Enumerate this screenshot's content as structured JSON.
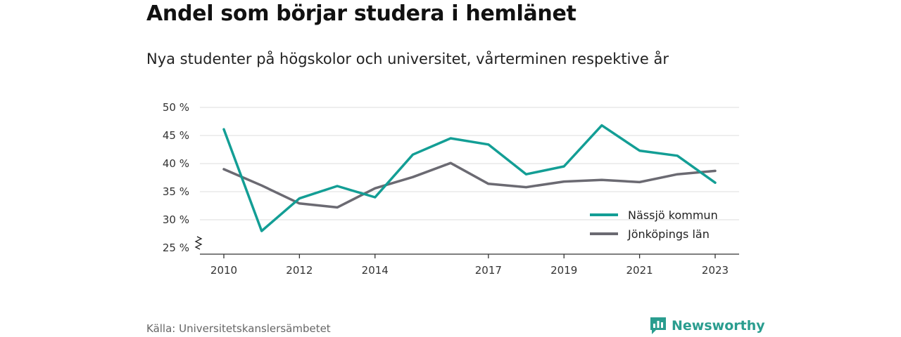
{
  "header": {
    "title": "Andel som börjar studera i hemlänet",
    "subtitle": "Nya studenter på högskolor och universitet, vårterminen respektive år"
  },
  "footer": {
    "source": "Källa: Universitetskanslersämbetet",
    "brand": "Newsworthy",
    "brand_icon": "chart-logo-icon",
    "brand_color": "#2a9d8f"
  },
  "chart_data": {
    "type": "line",
    "title": "",
    "xlabel": "",
    "ylabel": "",
    "xlim": [
      2010,
      2023
    ],
    "ylim": [
      25,
      50
    ],
    "y_axis_break": true,
    "grid": "horizontal",
    "legend_position": "bottom-right",
    "x_ticks": [
      "2010",
      "2012",
      "2014",
      "2017",
      "2019",
      "2021",
      "2023"
    ],
    "y_ticks": [
      "25 %",
      "30 %",
      "35 %",
      "40 %",
      "45 %",
      "50 %"
    ],
    "x": [
      2010,
      2011,
      2012,
      2013,
      2014,
      2015,
      2016,
      2017,
      2018,
      2019,
      2020,
      2021,
      2022,
      2023
    ],
    "series": [
      {
        "name": "Nässjö kommun",
        "color": "#139e95",
        "values": [
          46.1,
          28.0,
          33.8,
          36.0,
          34.0,
          41.6,
          44.5,
          43.4,
          38.1,
          39.5,
          46.8,
          42.3,
          41.4,
          36.6
        ]
      },
      {
        "name": "Jönköpings län",
        "color": "#6b6a72",
        "values": [
          39.0,
          36.1,
          32.9,
          32.2,
          35.6,
          37.6,
          40.1,
          36.4,
          35.8,
          36.8,
          37.1,
          36.7,
          38.1,
          38.7
        ]
      }
    ]
  }
}
